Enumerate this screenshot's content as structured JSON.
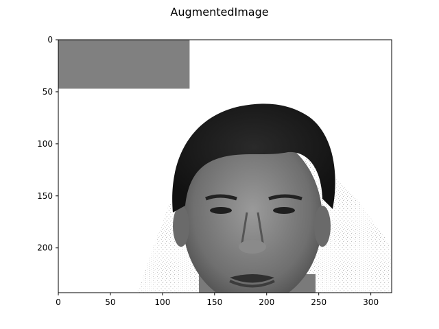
{
  "figure": {
    "title": "AugmentedImage"
  },
  "image": {
    "width_data": 320,
    "height_data": 243,
    "colormap": "gray",
    "occlusion_box": {
      "x0": 0,
      "y0": 0,
      "x1": 126,
      "y1": 47,
      "color": "#808080"
    },
    "content": "grayscale face photo with white background and random noise speckles"
  },
  "axes": {
    "x_ticks": [
      {
        "value": 0,
        "label": "0"
      },
      {
        "value": 50,
        "label": "50"
      },
      {
        "value": 100,
        "label": "100"
      },
      {
        "value": 150,
        "label": "150"
      },
      {
        "value": 200,
        "label": "200"
      },
      {
        "value": 250,
        "label": "250"
      },
      {
        "value": 300,
        "label": "300"
      }
    ],
    "y_ticks": [
      {
        "value": 0,
        "label": "0"
      },
      {
        "value": 50,
        "label": "50"
      },
      {
        "value": 100,
        "label": "100"
      },
      {
        "value": 150,
        "label": "150"
      },
      {
        "value": 200,
        "label": "200"
      }
    ],
    "x_range": [
      0,
      320
    ],
    "y_range": [
      0,
      243
    ]
  }
}
